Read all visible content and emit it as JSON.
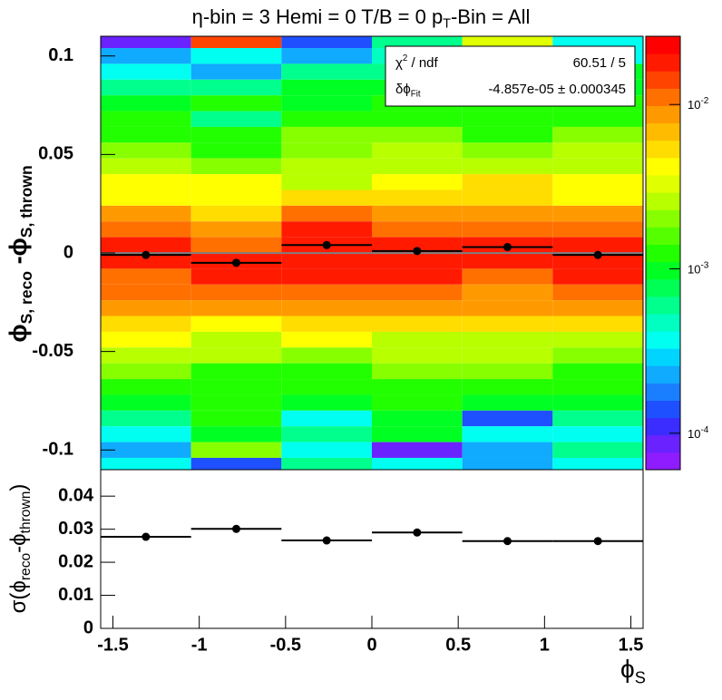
{
  "chart_data": [
    {
      "type": "heatmap",
      "title": [
        {
          "text": "η-bin = 3 Hemi = 0 T/B = 0 p"
        },
        {
          "text": "T",
          "sub": true
        },
        {
          "text": "-Bin = All"
        }
      ],
      "ylabel": [
        {
          "text": "ϕ"
        },
        {
          "text": "S, reco",
          "sub": true
        },
        {
          "text": " -ϕ"
        },
        {
          "text": "S, thrown",
          "sub": true
        }
      ],
      "x_bins": [
        -1.5708,
        -1.0472,
        -0.5236,
        0,
        0.5236,
        1.0472,
        1.5708
      ],
      "y_bins": [
        0.112,
        0.104,
        0.096,
        0.088,
        0.08,
        0.072,
        0.064,
        0.056,
        0.048,
        0.04,
        0.032,
        0.024,
        0.016,
        0.008,
        0,
        -0.008,
        -0.016,
        -0.024,
        -0.032,
        -0.04,
        -0.048,
        -0.056,
        -0.064,
        -0.072,
        -0.08,
        -0.088,
        -0.096,
        -0.104,
        -0.112
      ],
      "z": [
        [
          8e-05,
          0.015,
          0.00015,
          0.0006,
          0.003,
          0.0004
        ],
        [
          0.00025,
          0.0004,
          0.00025,
          0.0005,
          0.0006,
          0.0004
        ],
        [
          0.0004,
          0.00025,
          0.0006,
          0.0006,
          0.0004,
          0.0009
        ],
        [
          0.0006,
          0.0006,
          0.0009,
          0.0009,
          0.0009,
          0.0009
        ],
        [
          0.0009,
          0.0012,
          0.0009,
          0.0012,
          0.0012,
          0.0012
        ],
        [
          0.0012,
          0.0006,
          0.0012,
          0.0012,
          0.0012,
          0.0012
        ],
        [
          0.0012,
          0.0012,
          0.0018,
          0.0018,
          0.0012,
          0.0018
        ],
        [
          0.0018,
          0.0012,
          0.0018,
          0.0025,
          0.0018,
          0.0025
        ],
        [
          0.0025,
          0.0018,
          0.0025,
          0.0025,
          0.0025,
          0.0025
        ],
        [
          0.004,
          0.004,
          0.0025,
          0.004,
          0.005,
          0.004
        ],
        [
          0.004,
          0.004,
          0.005,
          0.005,
          0.005,
          0.004
        ],
        [
          0.008,
          0.005,
          0.012,
          0.008,
          0.008,
          0.008
        ],
        [
          0.012,
          0.008,
          0.02,
          0.012,
          0.012,
          0.012
        ],
        [
          0.02,
          0.012,
          0.02,
          0.02,
          0.02,
          0.02
        ],
        [
          0.02,
          0.02,
          0.02,
          0.02,
          0.02,
          0.02
        ],
        [
          0.012,
          0.02,
          0.02,
          0.02,
          0.012,
          0.02
        ],
        [
          0.012,
          0.012,
          0.012,
          0.012,
          0.008,
          0.012
        ],
        [
          0.008,
          0.008,
          0.008,
          0.008,
          0.008,
          0.008
        ],
        [
          0.005,
          0.004,
          0.005,
          0.005,
          0.005,
          0.005
        ],
        [
          0.004,
          0.0025,
          0.004,
          0.0025,
          0.0025,
          0.0025
        ],
        [
          0.0025,
          0.0025,
          0.0018,
          0.0025,
          0.0025,
          0.0018
        ],
        [
          0.0018,
          0.0012,
          0.0012,
          0.0018,
          0.0018,
          0.0012
        ],
        [
          0.0012,
          0.0012,
          0.0012,
          0.0012,
          0.0012,
          0.0012
        ],
        [
          0.0009,
          0.0012,
          0.0009,
          0.0012,
          0.0009,
          0.0009
        ],
        [
          0.0006,
          0.0012,
          0.0004,
          0.0009,
          0.00015,
          0.0006
        ],
        [
          0.0004,
          0.0009,
          0.0006,
          0.0009,
          0.0004,
          0.0004
        ],
        [
          0.00025,
          0.002,
          0.0004,
          8e-05,
          0.00025,
          0.0006
        ],
        [
          0.0004,
          0.00015,
          0.0006,
          0.0004,
          0.00025,
          0.0004
        ]
      ],
      "zlim": [
        6e-05,
        0.026
      ],
      "zlog": true,
      "palette": [
        "#8f1cff",
        "#6a22ff",
        "#3b2cff",
        "#1f50ff",
        "#1a7fff",
        "#10aaff",
        "#00d4ff",
        "#00fff0",
        "#00ffc0",
        "#00ff8c",
        "#00ff55",
        "#00ff22",
        "#22ff00",
        "#55ff00",
        "#88ff00",
        "#b8ff00",
        "#e0ff00",
        "#ffff00",
        "#ffdd00",
        "#ffbb00",
        "#ff9900",
        "#ff7000",
        "#ff4400",
        "#ff1a00",
        "#ff0000"
      ],
      "zticks": [
        {
          "value": 0.0001,
          "label": "10",
          "exp": "-4"
        },
        {
          "value": 0.001,
          "label": "10",
          "exp": "-3"
        },
        {
          "value": 0.01,
          "label": "10",
          "exp": "-2"
        }
      ],
      "xlim": [
        -1.5708,
        1.5708
      ],
      "ylim": [
        -0.11,
        0.11
      ],
      "yticks": [
        -0.1,
        -0.05,
        0,
        0.05,
        0.1
      ],
      "x": [
        -1.309,
        -0.7854,
        -0.2618,
        0.2618,
        0.7854,
        1.309
      ],
      "values": [
        -0.001,
        -0.005,
        0.004,
        0.001,
        0.003,
        -0.001
      ],
      "color": "#000000",
      "fit": -4.857e-05,
      "fit_color": "#7f7f7f",
      "stats": [
        {
          "label": [
            {
              "text": "χ"
            },
            {
              "text": "2",
              "sup": true
            },
            {
              "text": " / ndf"
            }
          ],
          "value": "60.51 / 5"
        },
        {
          "label": [
            {
              "text": "δϕ"
            },
            {
              "text": "Fit",
              "sub": true
            }
          ],
          "value": "-4.857e-05 ± 0.000345"
        }
      ]
    },
    {
      "type": "profile",
      "ylabel": [
        {
          "text": "σ(ϕ"
        },
        {
          "text": "reco",
          "sub": true
        },
        {
          "text": "-ϕ"
        },
        {
          "text": "thrown",
          "sub": true
        },
        {
          "text": ")"
        }
      ],
      "xlabel": [
        {
          "text": "ϕ"
        },
        {
          "text": "S",
          "sub": true
        }
      ],
      "x_bins": [
        -1.5708,
        -1.0472,
        -0.5236,
        0,
        0.5236,
        1.0472,
        1.5708
      ],
      "x": [
        -1.309,
        -0.7854,
        -0.2618,
        0.2618,
        0.7854,
        1.309
      ],
      "values": [
        0.0277,
        0.0301,
        0.0266,
        0.029,
        0.0264,
        0.0264
      ],
      "color": "#000000",
      "xlim": [
        -1.5708,
        1.5708
      ],
      "ylim": [
        0,
        0.048
      ],
      "xticks": [
        -1.5,
        -1,
        -0.5,
        0,
        0.5,
        1,
        1.5
      ],
      "yticks": [
        0,
        0.01,
        0.02,
        0.03,
        0.04
      ]
    }
  ]
}
